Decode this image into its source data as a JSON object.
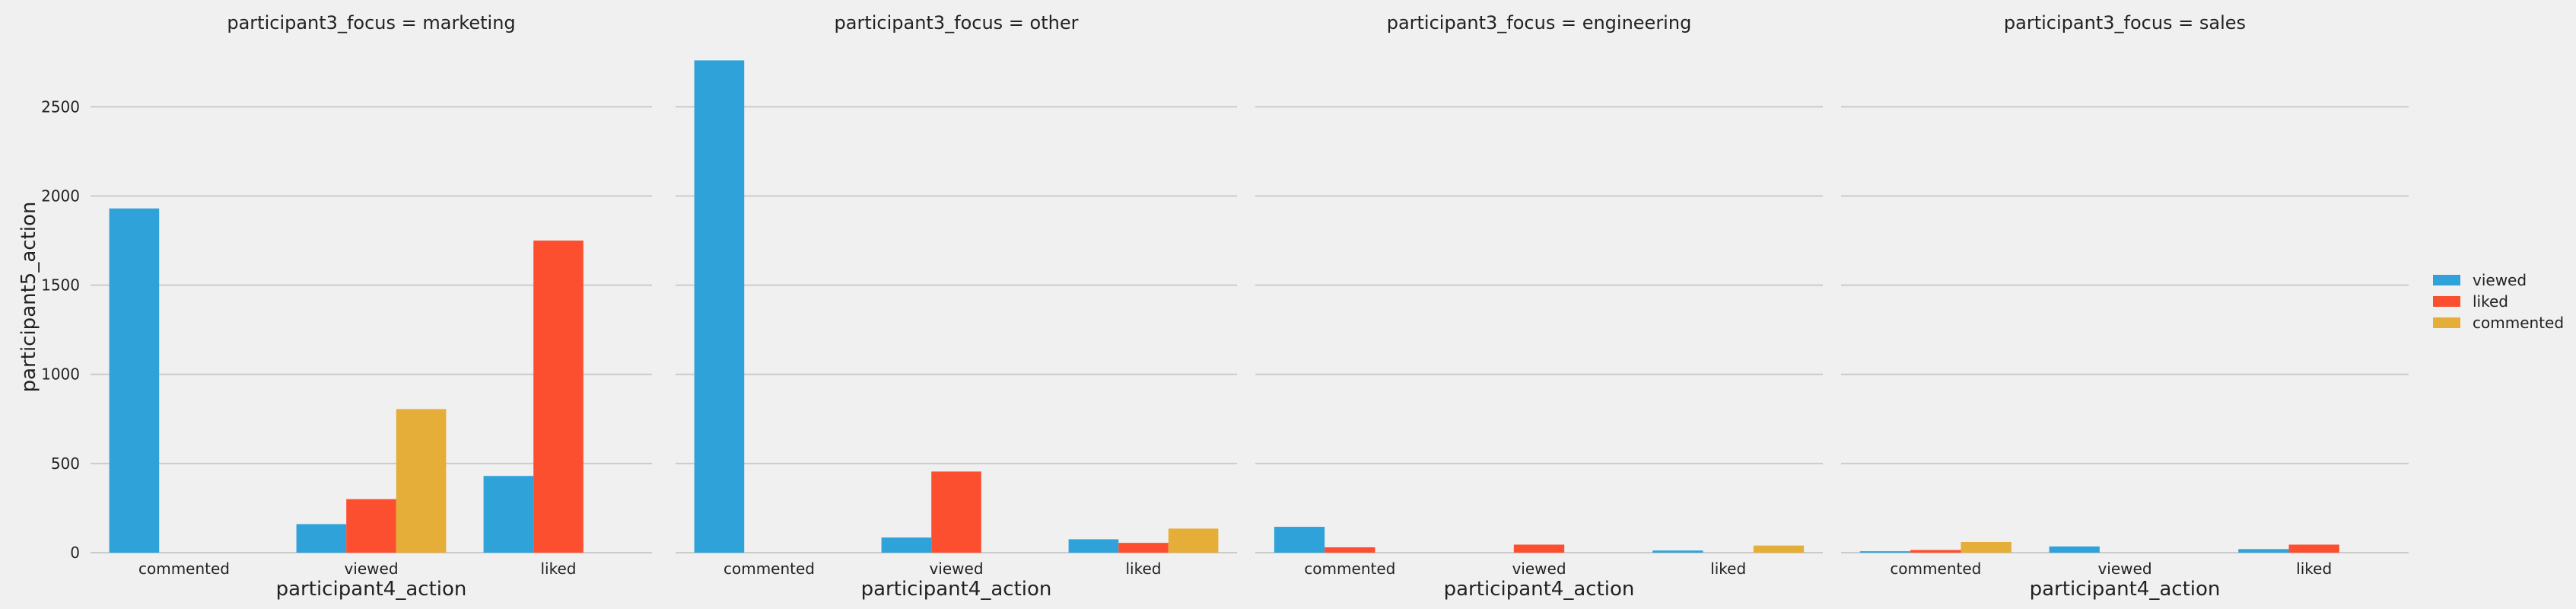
{
  "chart_data": {
    "type": "bar",
    "facet_variable": "participant3_focus",
    "facets": [
      {
        "title": "participant3_focus = marketing",
        "categories": [
          "commented",
          "viewed",
          "liked"
        ],
        "series": [
          {
            "name": "viewed",
            "values": [
              1930,
              160,
              430
            ]
          },
          {
            "name": "liked",
            "values": [
              null,
              300,
              1750
            ]
          },
          {
            "name": "commented",
            "values": [
              null,
              805,
              null
            ]
          }
        ]
      },
      {
        "title": "participant3_focus = other",
        "categories": [
          "commented",
          "viewed",
          "liked"
        ],
        "series": [
          {
            "name": "viewed",
            "values": [
              2760,
              85,
              75
            ]
          },
          {
            "name": "liked",
            "values": [
              null,
              455,
              55
            ]
          },
          {
            "name": "commented",
            "values": [
              null,
              null,
              135
            ]
          }
        ]
      },
      {
        "title": "participant3_focus = engineering",
        "categories": [
          "commented",
          "viewed",
          "liked"
        ],
        "series": [
          {
            "name": "viewed",
            "values": [
              145,
              null,
              12
            ]
          },
          {
            "name": "liked",
            "values": [
              30,
              45,
              null
            ]
          },
          {
            "name": "commented",
            "values": [
              null,
              null,
              40
            ]
          }
        ]
      },
      {
        "title": "participant3_focus = sales",
        "categories": [
          "commented",
          "viewed",
          "liked"
        ],
        "series": [
          {
            "name": "viewed",
            "values": [
              8,
              35,
              20
            ]
          },
          {
            "name": "liked",
            "values": [
              15,
              null,
              45
            ]
          },
          {
            "name": "commented",
            "values": [
              60,
              null,
              null
            ]
          }
        ]
      }
    ],
    "xlabel": "participant4_action",
    "ylabel": "participant5_action",
    "ylim": [
      0,
      2800
    ],
    "yticks": [
      0,
      500,
      1000,
      1500,
      2000,
      2500
    ],
    "grid": "horizontal",
    "legend": {
      "placement": "right",
      "entries": [
        "viewed",
        "liked",
        "commented"
      ]
    },
    "colors": {
      "viewed": "#30a2da",
      "liked": "#fc4f30",
      "commented": "#e5ae38"
    }
  }
}
